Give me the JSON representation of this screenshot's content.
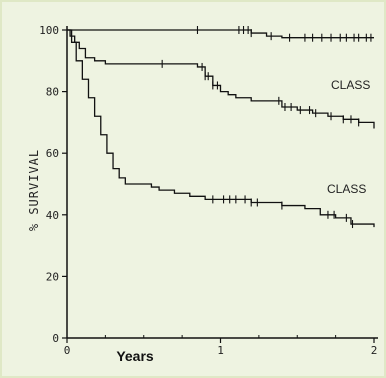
{
  "chart_data": {
    "type": "line",
    "xlabel": "Years",
    "ylabel": "% SURVIVAL",
    "xlim": [
      0,
      2
    ],
    "ylim": [
      0,
      100
    ],
    "x_ticks": [
      "0",
      "1",
      "2"
    ],
    "y_ticks": [
      "0",
      "20",
      "40",
      "60",
      "80",
      "100"
    ],
    "annotations": [
      "CLASS",
      "CLASS"
    ],
    "colors": {
      "line": "#111111",
      "axis": "#111111",
      "background": "#eef3e1"
    },
    "series": [
      {
        "x": [
          0,
          0.1,
          0.3,
          0.5,
          0.7,
          0.9,
          1.1,
          1.2,
          1.3,
          1.4,
          1.5,
          1.6,
          1.8,
          2.0
        ],
        "y": [
          100,
          100,
          100,
          100,
          100,
          100,
          100,
          99,
          98,
          97.5,
          97.5,
          97.5,
          97.5,
          97.5
        ],
        "censor_x": [
          0.85,
          1.12,
          1.15,
          1.18,
          1.2,
          1.33,
          1.45,
          1.55,
          1.6,
          1.66,
          1.72,
          1.78,
          1.82,
          1.87,
          1.9,
          1.95,
          1.98
        ]
      },
      {
        "x": [
          0,
          0.02,
          0.05,
          0.08,
          0.12,
          0.18,
          0.25,
          0.4,
          0.6,
          0.75,
          0.85,
          0.9,
          0.95,
          1.0,
          1.05,
          1.1,
          1.2,
          1.3,
          1.4,
          1.5,
          1.6,
          1.7,
          1.8,
          1.9,
          2.0
        ],
        "y": [
          100,
          98,
          96,
          94,
          91,
          90,
          89,
          89,
          89,
          89,
          88,
          85,
          82,
          80,
          79,
          78,
          77,
          77,
          75,
          74,
          73,
          72,
          71,
          70,
          68
        ],
        "censor_x": [
          0.62,
          0.88,
          0.9,
          0.92,
          0.95,
          0.98,
          1.38,
          1.42,
          1.46,
          1.52,
          1.58,
          1.62,
          1.72,
          1.8,
          1.85,
          1.9
        ]
      },
      {
        "x": [
          0,
          0.03,
          0.06,
          0.1,
          0.14,
          0.18,
          0.22,
          0.26,
          0.3,
          0.34,
          0.38,
          0.45,
          0.55,
          0.6,
          0.7,
          0.8,
          0.9,
          1.0,
          1.2,
          1.4,
          1.55,
          1.65,
          1.75,
          1.85,
          2.0
        ],
        "y": [
          100,
          96,
          90,
          84,
          78,
          72,
          66,
          60,
          55,
          52,
          50,
          50,
          49,
          48,
          47,
          46,
          45,
          45,
          44,
          43,
          42,
          40,
          39,
          37,
          36
        ],
        "censor_x": [
          0.95,
          1.02,
          1.06,
          1.1,
          1.16,
          1.2,
          1.24,
          1.4,
          1.7,
          1.74,
          1.82,
          1.86
        ]
      }
    ]
  }
}
